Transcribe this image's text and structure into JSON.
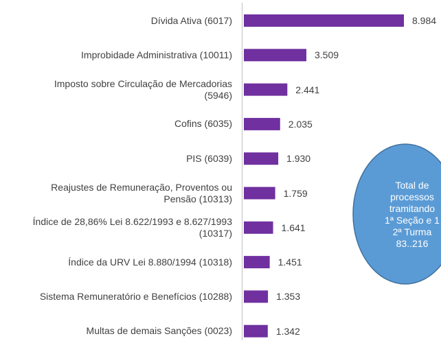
{
  "chart_data": {
    "type": "barh",
    "categories": [
      "Dívida Ativa (6017)",
      "Improbidade Administrativa (10011)",
      "Imposto sobre Circulação de Mercadorias\n(5946)",
      "Cofins (6035)",
      "PIS (6039)",
      "Reajustes de Remuneração, Proventos ou\nPensão (10313)",
      "Índice de 28,86% Lei 8.622/1993 e 8.627/1993\n(10317)",
      "Índice da URV Lei 8.880/1994 (10318)",
      "Sistema Remuneratório e Benefícios (10288)",
      "Multas de demais Sanções (0023)"
    ],
    "values": [
      8984,
      3509,
      2441,
      2035,
      1930,
      1759,
      1641,
      1451,
      1353,
      1342
    ],
    "value_labels": [
      "8.984",
      "3.509",
      "2.441",
      "2.035",
      "1.930",
      "1.759",
      "1.641",
      "1.451",
      "1.353",
      "1.342"
    ],
    "color": "#7030a0",
    "annotation": "Total de\nprocessos\ntramitando\n1ª Seção e 1\n2ª Turma\n83..216"
  }
}
